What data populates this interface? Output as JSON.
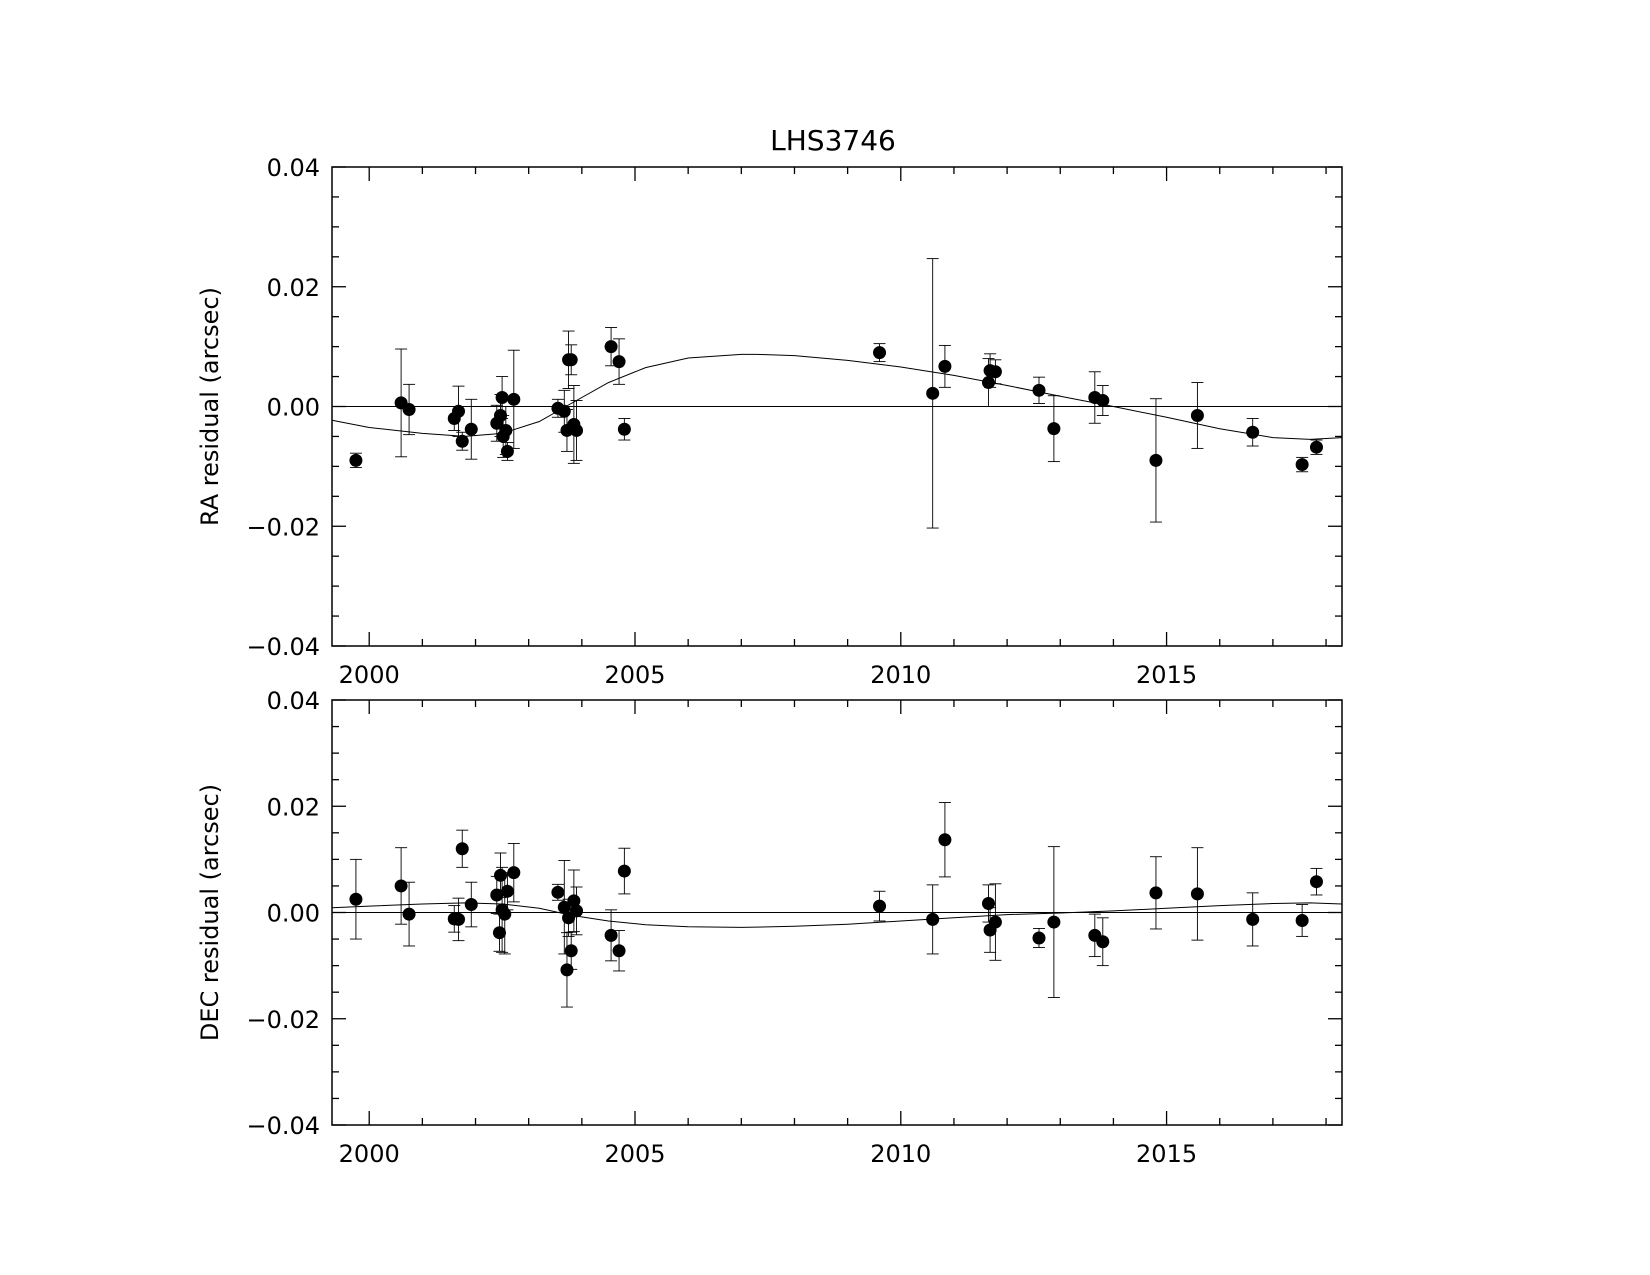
{
  "chart_data": [
    {
      "type": "scatter",
      "title": "LHS3746",
      "xlabel": "",
      "ylabel": "RA residual (arcsec)",
      "xlim": [
        1999.3,
        2018.3
      ],
      "ylim": [
        -0.04,
        0.04
      ],
      "xticks": [
        2000,
        2005,
        2010,
        2015
      ],
      "xtick_labels": [
        "2000",
        "2005",
        "2010",
        "2015"
      ],
      "yticks": [
        -0.04,
        -0.02,
        0.0,
        0.02,
        0.04
      ],
      "ytick_labels": [
        "−0.04",
        "−0.02",
        "0.00",
        "0.02",
        "0.04"
      ],
      "grid": false,
      "zero_line": true,
      "points": [
        {
          "x": 1999.75,
          "y": -0.009,
          "err": 0.0012
        },
        {
          "x": 2000.6,
          "y": 0.0006,
          "err": 0.009
        },
        {
          "x": 2000.75,
          "y": -0.0005,
          "err": 0.0042
        },
        {
          "x": 2001.6,
          "y": -0.002,
          "err": 0.002
        },
        {
          "x": 2001.68,
          "y": -0.0008,
          "err": 0.0042
        },
        {
          "x": 2001.75,
          "y": -0.0058,
          "err": 0.0015
        },
        {
          "x": 2001.92,
          "y": -0.0038,
          "err": 0.005
        },
        {
          "x": 2002.4,
          "y": -0.0028,
          "err": 0.003
        },
        {
          "x": 2002.47,
          "y": -0.0015,
          "err": 0.0035
        },
        {
          "x": 2002.5,
          "y": 0.0015,
          "err": 0.0035
        },
        {
          "x": 2002.52,
          "y": -0.005,
          "err": 0.0035
        },
        {
          "x": 2002.57,
          "y": -0.004,
          "err": 0.004
        },
        {
          "x": 2002.6,
          "y": -0.0075,
          "err": 0.0015
        },
        {
          "x": 2002.72,
          "y": 0.0012,
          "err": 0.0082
        },
        {
          "x": 2003.55,
          "y": -0.0003,
          "err": 0.0015
        },
        {
          "x": 2003.67,
          "y": -0.0008,
          "err": 0.0035
        },
        {
          "x": 2003.72,
          "y": -0.004,
          "err": 0.0035
        },
        {
          "x": 2003.75,
          "y": 0.0078,
          "err": 0.0048
        },
        {
          "x": 2003.8,
          "y": 0.0078,
          "err": 0.0025
        },
        {
          "x": 2003.85,
          "y": -0.003,
          "err": 0.0065
        },
        {
          "x": 2003.9,
          "y": -0.004,
          "err": 0.005
        },
        {
          "x": 2004.55,
          "y": 0.01,
          "err": 0.0032
        },
        {
          "x": 2004.7,
          "y": 0.0075,
          "err": 0.0038
        },
        {
          "x": 2004.8,
          "y": -0.0038,
          "err": 0.0018
        },
        {
          "x": 2009.6,
          "y": 0.009,
          "err": 0.0015
        },
        {
          "x": 2010.6,
          "y": 0.0022,
          "err": 0.0225
        },
        {
          "x": 2010.83,
          "y": 0.0067,
          "err": 0.0035
        },
        {
          "x": 2011.65,
          "y": 0.004,
          "err": 0.004
        },
        {
          "x": 2011.68,
          "y": 0.006,
          "err": 0.0028
        },
        {
          "x": 2011.78,
          "y": 0.0058,
          "err": 0.002
        },
        {
          "x": 2012.6,
          "y": 0.0027,
          "err": 0.0022
        },
        {
          "x": 2012.88,
          "y": -0.0037,
          "err": 0.0055
        },
        {
          "x": 2013.65,
          "y": 0.0015,
          "err": 0.0043
        },
        {
          "x": 2013.8,
          "y": 0.001,
          "err": 0.0025
        },
        {
          "x": 2014.8,
          "y": -0.009,
          "err": 0.0103
        },
        {
          "x": 2015.58,
          "y": -0.0015,
          "err": 0.0055
        },
        {
          "x": 2016.62,
          "y": -0.0043,
          "err": 0.0023
        },
        {
          "x": 2017.55,
          "y": -0.0097,
          "err": 0.0012
        },
        {
          "x": 2017.82,
          "y": -0.0068,
          "err": 0.0012
        }
      ],
      "model": {
        "x": [
          1999.3,
          2000.0,
          2001.0,
          2001.8,
          2002.5,
          2003.2,
          2003.8,
          2004.5,
          2005.2,
          2006.0,
          2007.0,
          2007.3,
          2008.0,
          2009.0,
          2010.0,
          2011.0,
          2012.0,
          2013.0,
          2014.0,
          2015.0,
          2016.0,
          2017.0,
          2017.7,
          2018.3
        ],
        "y": [
          -0.0023,
          -0.0035,
          -0.0045,
          -0.005,
          -0.0045,
          -0.0025,
          0.0005,
          0.004,
          0.0065,
          0.0081,
          0.0087,
          0.0087,
          0.0085,
          0.0077,
          0.0066,
          0.0052,
          0.0035,
          0.0017,
          0.0,
          -0.0018,
          -0.0037,
          -0.0052,
          -0.0055,
          -0.0052
        ]
      }
    },
    {
      "type": "scatter",
      "title": "",
      "xlabel": "",
      "ylabel": "DEC residual (arcsec)",
      "xlim": [
        1999.3,
        2018.3
      ],
      "ylim": [
        -0.04,
        0.04
      ],
      "xticks": [
        2000,
        2005,
        2010,
        2015
      ],
      "xtick_labels": [
        "2000",
        "2005",
        "2010",
        "2015"
      ],
      "yticks": [
        -0.04,
        -0.02,
        0.0,
        0.02,
        0.04
      ],
      "ytick_labels": [
        "−0.04",
        "−0.02",
        "0.00",
        "0.02",
        "0.04"
      ],
      "grid": false,
      "zero_line": true,
      "points": [
        {
          "x": 1999.75,
          "y": 0.0025,
          "err": 0.0075
        },
        {
          "x": 2000.6,
          "y": 0.005,
          "err": 0.0072
        },
        {
          "x": 2000.75,
          "y": -0.0003,
          "err": 0.006
        },
        {
          "x": 2001.6,
          "y": -0.0012,
          "err": 0.0025
        },
        {
          "x": 2001.68,
          "y": -0.0013,
          "err": 0.004
        },
        {
          "x": 2001.75,
          "y": 0.012,
          "err": 0.0035
        },
        {
          "x": 2001.92,
          "y": 0.0015,
          "err": 0.0042
        },
        {
          "x": 2002.4,
          "y": 0.0033,
          "err": 0.0035
        },
        {
          "x": 2002.45,
          "y": -0.0038,
          "err": 0.0035
        },
        {
          "x": 2002.47,
          "y": 0.007,
          "err": 0.0042
        },
        {
          "x": 2002.5,
          "y": 0.0005,
          "err": 0.008
        },
        {
          "x": 2002.55,
          "y": -0.0003,
          "err": 0.0075
        },
        {
          "x": 2002.6,
          "y": 0.004,
          "err": 0.0035
        },
        {
          "x": 2002.72,
          "y": 0.0075,
          "err": 0.0055
        },
        {
          "x": 2003.55,
          "y": 0.0038,
          "err": 0.0015
        },
        {
          "x": 2003.67,
          "y": 0.001,
          "err": 0.0088
        },
        {
          "x": 2003.72,
          "y": -0.0108,
          "err": 0.007
        },
        {
          "x": 2003.75,
          "y": -0.001,
          "err": 0.0035
        },
        {
          "x": 2003.8,
          "y": -0.0072,
          "err": 0.0035
        },
        {
          "x": 2003.85,
          "y": 0.0022,
          "err": 0.0058
        },
        {
          "x": 2003.9,
          "y": 0.0003,
          "err": 0.0045
        },
        {
          "x": 2004.55,
          "y": -0.0043,
          "err": 0.0048
        },
        {
          "x": 2004.7,
          "y": -0.0072,
          "err": 0.0038
        },
        {
          "x": 2004.8,
          "y": 0.0078,
          "err": 0.0043
        },
        {
          "x": 2009.6,
          "y": 0.0012,
          "err": 0.0028
        },
        {
          "x": 2010.6,
          "y": -0.0013,
          "err": 0.0065
        },
        {
          "x": 2010.83,
          "y": 0.0137,
          "err": 0.007
        },
        {
          "x": 2011.65,
          "y": 0.0017,
          "err": 0.0035
        },
        {
          "x": 2011.68,
          "y": -0.0033,
          "err": 0.0042
        },
        {
          "x": 2011.78,
          "y": -0.0018,
          "err": 0.0072
        },
        {
          "x": 2012.6,
          "y": -0.0048,
          "err": 0.0018
        },
        {
          "x": 2012.88,
          "y": -0.0018,
          "err": 0.0142
        },
        {
          "x": 2013.65,
          "y": -0.0043,
          "err": 0.004
        },
        {
          "x": 2013.8,
          "y": -0.0055,
          "err": 0.0045
        },
        {
          "x": 2014.8,
          "y": 0.0037,
          "err": 0.0068
        },
        {
          "x": 2015.58,
          "y": 0.0035,
          "err": 0.0087
        },
        {
          "x": 2016.62,
          "y": -0.0013,
          "err": 0.005
        },
        {
          "x": 2017.55,
          "y": -0.0015,
          "err": 0.003
        },
        {
          "x": 2017.82,
          "y": 0.0058,
          "err": 0.0025
        }
      ],
      "model": {
        "x": [
          1999.3,
          2000.0,
          2001.0,
          2001.8,
          2002.5,
          2003.2,
          2003.8,
          2004.5,
          2005.2,
          2006.0,
          2007.0,
          2008.0,
          2009.0,
          2010.0,
          2011.0,
          2012.0,
          2013.0,
          2014.0,
          2015.0,
          2016.0,
          2017.0,
          2017.7,
          2018.3
        ],
        "y": [
          0.0009,
          0.0012,
          0.0016,
          0.0018,
          0.0016,
          0.0008,
          -0.0005,
          -0.0016,
          -0.0023,
          -0.0027,
          -0.0028,
          -0.0026,
          -0.0022,
          -0.0016,
          -0.001,
          -0.0004,
          -0.0001,
          0.0003,
          0.0008,
          0.0013,
          0.0017,
          0.0018,
          0.0016
        ]
      }
    }
  ]
}
